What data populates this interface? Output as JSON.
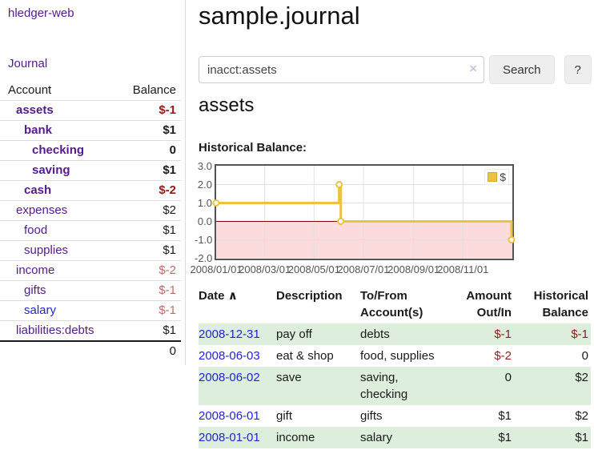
{
  "colors": {
    "link_purple": "#551a8b",
    "link_blue": "#2222dd",
    "negative_strong": "#941a1a",
    "negative_soft": "#bf6a6a",
    "row_stripe_green": "#ddeedd",
    "button_bg": "#eeeeee",
    "series_yellow": "#edc240",
    "negative_region_pink": "#fbdbdb",
    "zero_line_red": "#8b0000"
  },
  "sidebar": {
    "brand": "hledger-web",
    "journal_link": "Journal",
    "accounts_table": {
      "headers": [
        "Account",
        "Balance"
      ],
      "rows": [
        {
          "account": "assets",
          "balance": "$-1",
          "depth": 1,
          "bold": true,
          "negative": "strong"
        },
        {
          "account": "bank",
          "balance": "$1",
          "depth": 2,
          "bold": true
        },
        {
          "account": "checking",
          "balance": "0",
          "depth": 3,
          "bold": true
        },
        {
          "account": "saving",
          "balance": "$1",
          "depth": 3,
          "bold": true
        },
        {
          "account": "cash",
          "balance": "$-2",
          "depth": 2,
          "bold": true,
          "negative": "strong"
        },
        {
          "account": "expenses",
          "balance": "$2",
          "depth": 1
        },
        {
          "account": "food",
          "balance": "$1",
          "depth": 2
        },
        {
          "account": "supplies",
          "balance": "$1",
          "depth": 2
        },
        {
          "account": "income",
          "balance": "$-2",
          "depth": 1,
          "negative": "soft"
        },
        {
          "account": "gifts",
          "balance": "$-1",
          "depth": 2,
          "negative": "soft"
        },
        {
          "account": "salary",
          "balance": "$-1",
          "depth": 2,
          "negative": "soft",
          "link_color": "blue"
        },
        {
          "account": "liabilities:debts",
          "balance": "$1",
          "depth": 1
        }
      ],
      "total": "0"
    }
  },
  "main": {
    "title": "sample.journal",
    "search": {
      "value": "inacct:assets",
      "clear_icon": "×",
      "button_label": "Search",
      "help_label": "?"
    },
    "section_title": "assets",
    "register_table": {
      "columns": [
        {
          "line1": "Date",
          "sort": "∧"
        },
        {
          "line1": "Description"
        },
        {
          "line1": "To/From",
          "line2": "Account(s)"
        },
        {
          "line1": "Amount",
          "line2": "Out/In"
        },
        {
          "line1": "Historical",
          "line2": "Balance"
        }
      ],
      "rows": [
        {
          "date": "2008-12-31",
          "description": "pay off",
          "accounts": "debts",
          "amount": "$-1",
          "balance": "$-1"
        },
        {
          "date": "2008-06-03",
          "description": "eat & shop",
          "accounts": "food, supplies",
          "amount": "$-2",
          "balance": "0"
        },
        {
          "date": "2008-06-02",
          "description": "save",
          "accounts": "saving, checking",
          "amount": "0",
          "balance": "$2"
        },
        {
          "date": "2008-06-01",
          "description": "gift",
          "accounts": "gifts",
          "amount": "$1",
          "balance": "$2"
        },
        {
          "date": "2008-01-01",
          "description": "income",
          "accounts": "salary",
          "amount": "$1",
          "balance": "$1"
        }
      ]
    }
  },
  "chart_data": {
    "type": "line",
    "step": true,
    "title": "Historical Balance:",
    "legend": [
      {
        "label": "$",
        "color": "#edc240"
      }
    ],
    "x_range": [
      "2008-01-01",
      "2008-12-31"
    ],
    "points": [
      {
        "date": "2008-01-01",
        "day": 0,
        "value": 1
      },
      {
        "date": "2008-06-01",
        "day": 152,
        "value": 2
      },
      {
        "date": "2008-06-03",
        "day": 154,
        "value": 0
      },
      {
        "date": "2008-12-31",
        "day": 365,
        "value": -1
      }
    ],
    "xticks": [
      {
        "label": "2008/01/01",
        "day": 0
      },
      {
        "label": "2008/03/01",
        "day": 60
      },
      {
        "label": "2008/05/01",
        "day": 121
      },
      {
        "label": "2008/07/01",
        "day": 182
      },
      {
        "label": "2008/09/01",
        "day": 244
      },
      {
        "label": "2008/11/01",
        "day": 305
      }
    ],
    "yticks": [
      3.0,
      2.0,
      1.0,
      0.0,
      -1.0,
      -2.0
    ],
    "ylim": [
      -2,
      3
    ],
    "grid": true,
    "legend_position": "top-right",
    "series_color": "#edc240",
    "negative_region_fill": "#fbdbdb",
    "zero_line_color": "#8b0000"
  }
}
